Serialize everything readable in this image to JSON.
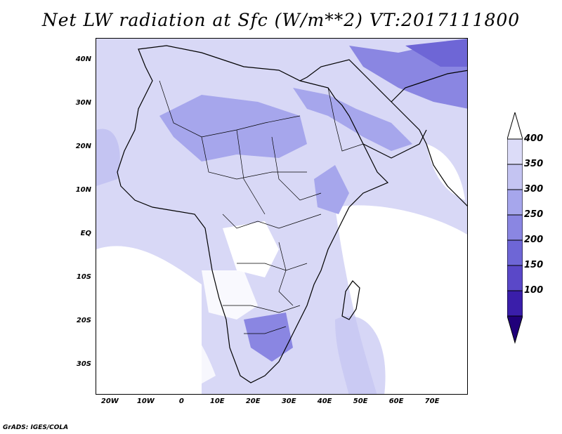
{
  "title": "Net LW radiation at Sfc (W/m**2) VT:2017111800",
  "footer": "GrADS: IGES/COLA",
  "map": {
    "lon_range": [
      -24,
      80
    ],
    "lat_range": [
      -37,
      45
    ],
    "lat_ticks": [
      "40N",
      "30N",
      "20N",
      "10N",
      "EQ",
      "10S",
      "20S",
      "30S"
    ],
    "lat_values": [
      40,
      30,
      20,
      10,
      0,
      -10,
      -20,
      -30
    ],
    "lon_ticks": [
      "20W",
      "10W",
      "0",
      "10E",
      "20E",
      "30E",
      "40E",
      "50E",
      "60E",
      "70E"
    ],
    "lon_values": [
      -20,
      -10,
      0,
      10,
      20,
      30,
      40,
      50,
      60,
      70
    ]
  },
  "colorbar": {
    "labels": [
      "400",
      "350",
      "300",
      "250",
      "200",
      "150",
      "100"
    ],
    "colors": [
      "#ffffff",
      "#dcdcf8",
      "#c4c4f2",
      "#a6a6ec",
      "#8a86e2",
      "#6e66d6",
      "#5a48c8",
      "#3a1eaa",
      "#20007a"
    ]
  }
}
